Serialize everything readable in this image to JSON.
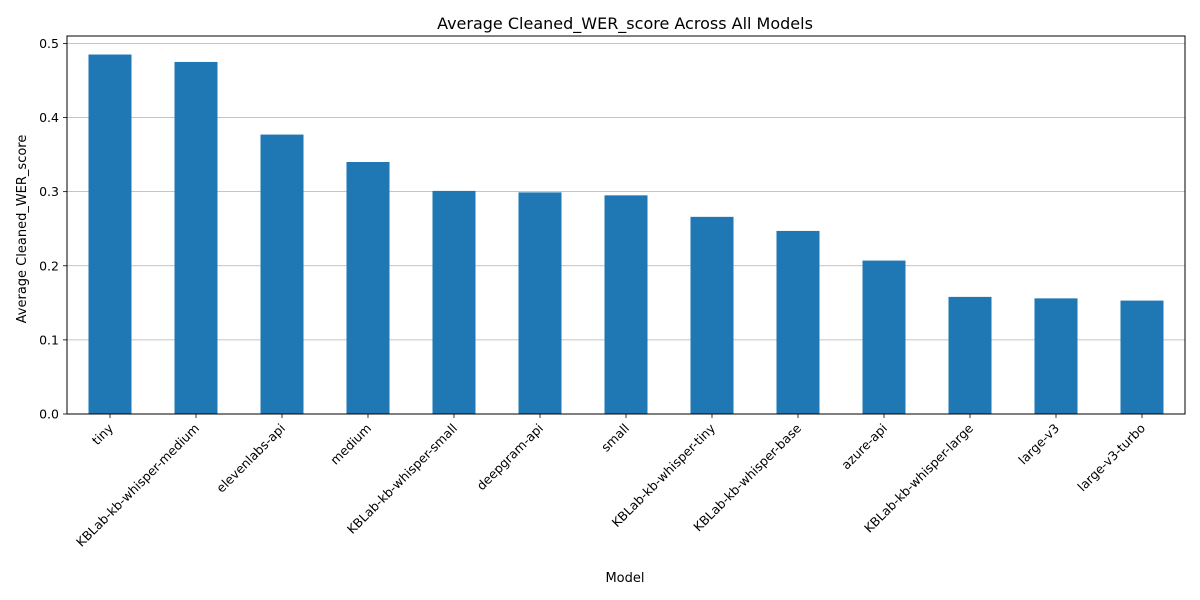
{
  "chart_data": {
    "type": "bar",
    "title": "Average Cleaned_WER_score Across All Models",
    "xlabel": "Model",
    "ylabel": "Average Cleaned_WER_score",
    "categories": [
      "tiny",
      "KBLab-kb-whisper-medium",
      "elevenlabs-api",
      "medium",
      "KBLab-kb-whisper-small",
      "deepgram-api",
      "small",
      "KBLab-kb-whisper-tiny",
      "KBLab-kb-whisper-base",
      "azure-api",
      "KBLab-kb-whisper-large",
      "large-v3",
      "large-v3-turbo"
    ],
    "values": [
      0.485,
      0.475,
      0.377,
      0.34,
      0.301,
      0.299,
      0.295,
      0.266,
      0.247,
      0.207,
      0.158,
      0.156,
      0.153
    ],
    "ylim": [
      0,
      0.51
    ],
    "yticks": [
      0.0,
      0.1,
      0.2,
      0.3,
      0.4,
      0.5
    ],
    "ytick_labels": [
      "0.0",
      "0.1",
      "0.2",
      "0.3",
      "0.4",
      "0.5"
    ],
    "grid": "horizontal",
    "bar_color": "#1f77b4",
    "grid_color": "#b0b0b0"
  }
}
